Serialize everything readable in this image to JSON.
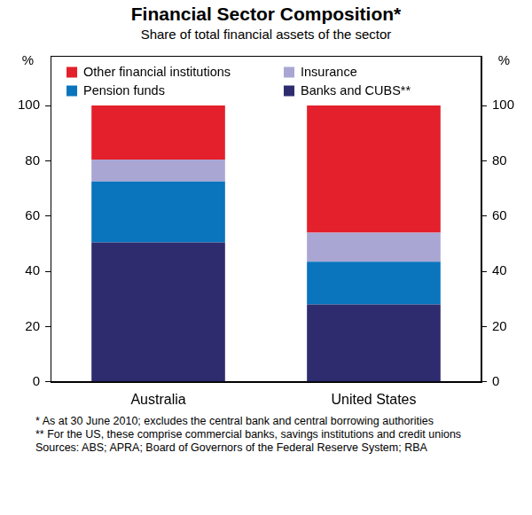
{
  "chart_data": {
    "type": "bar",
    "title": "Financial Sector Composition*",
    "subtitle": "Share of total financial assets of the sector",
    "ylabel": "%",
    "y2label": "%",
    "categories": [
      "Australia",
      "United States"
    ],
    "series": [
      {
        "name": "Banks and CUBS**",
        "color": "#2e2c6e",
        "values": [
          50.5,
          28
        ]
      },
      {
        "name": "Pension funds",
        "color": "#0a74bd",
        "values": [
          22,
          15.5
        ]
      },
      {
        "name": "Insurance",
        "color": "#aaa6d4",
        "values": [
          8,
          10.5
        ]
      },
      {
        "name": "Other financial institutions",
        "color": "#e3202b",
        "values": [
          19.5,
          46
        ]
      }
    ],
    "stacked": true,
    "ylim": [
      0,
      118
    ],
    "yticks": [
      0,
      20,
      40,
      60,
      80,
      100
    ],
    "y2lim": [
      0,
      118
    ],
    "y2ticks": [
      0,
      20,
      40,
      60,
      80,
      100
    ],
    "grid": false,
    "legend": "top",
    "notes": [
      "* As at 30 June 2010; excludes the central bank and central borrowing authorities",
      "** For the US, these comprise commercial banks, savings institutions and credit unions",
      "Sources: ABS; APRA; Board of Governors of the Federal Reserve System; RBA"
    ]
  }
}
